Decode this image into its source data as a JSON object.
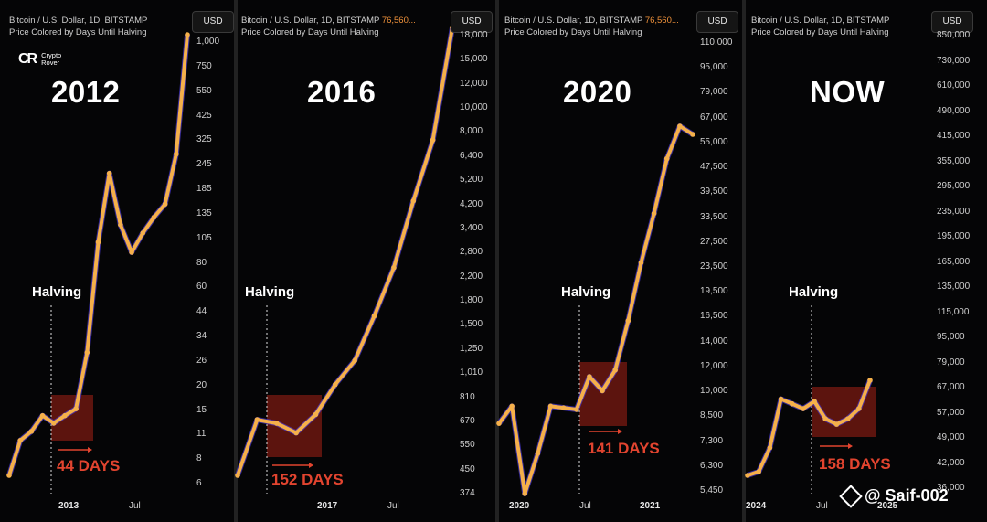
{
  "header": {
    "title": "Bitcoin / U.S. Dollar, 1D, BITSTAMP",
    "subtitle": "Price Colored by Days Until Halving",
    "price_text": "76,560...",
    "currency_button": "USD"
  },
  "logo": {
    "mark": "CR",
    "line1": "Crypto",
    "line2": "Rover"
  },
  "watermark": {
    "text": "@ Saif-002"
  },
  "colors": {
    "line_light": "#f5b04a",
    "line_dark": "#e06a25",
    "box": "#7a1a12",
    "days_text": "#e2442f",
    "outline": "#4a3ad8"
  },
  "panels": [
    {
      "year_label": "2012",
      "halving_label": "Halving",
      "days_label": "44 DAYS",
      "y_ticks": [
        "1,000",
        "750",
        "550",
        "425",
        "325",
        "245",
        "185",
        "135",
        "105",
        "80",
        "60",
        "44",
        "34",
        "26",
        "20",
        "15",
        "11",
        "8",
        "6"
      ],
      "x_ticks": [
        {
          "label": "2013",
          "bold": true
        },
        {
          "label": "Jul",
          "bold": false
        }
      ],
      "show_price": false,
      "show_logo": true
    },
    {
      "year_label": "2016",
      "halving_label": "Halving",
      "days_label": "152 DAYS",
      "y_ticks": [
        "18,000",
        "15,000",
        "12,000",
        "10,000",
        "8,000",
        "6,400",
        "5,200",
        "4,200",
        "3,400",
        "2,800",
        "2,200",
        "1,800",
        "1,500",
        "1,250",
        "1,010",
        "810",
        "670",
        "550",
        "450",
        "374"
      ],
      "x_ticks": [
        {
          "label": "2017",
          "bold": true
        },
        {
          "label": "Jul",
          "bold": false
        }
      ],
      "show_price": true,
      "show_logo": false
    },
    {
      "year_label": "2020",
      "halving_label": "Halving",
      "days_label": "141 DAYS",
      "y_ticks": [
        "110,000",
        "95,000",
        "79,000",
        "67,000",
        "55,000",
        "47,500",
        "39,500",
        "33,500",
        "27,500",
        "23,500",
        "19,500",
        "16,500",
        "14,000",
        "12,000",
        "10,000",
        "8,500",
        "7,300",
        "6,300",
        "5,450"
      ],
      "x_ticks": [
        {
          "label": "2020",
          "bold": true
        },
        {
          "label": "Jul",
          "bold": false
        },
        {
          "label": "2021",
          "bold": true
        }
      ],
      "show_price": true,
      "show_logo": false
    },
    {
      "year_label": "NOW",
      "halving_label": "Halving",
      "days_label": "158 DAYS",
      "y_ticks": [
        "850,000",
        "730,000",
        "610,000",
        "490,000",
        "415,000",
        "355,000",
        "295,000",
        "235,000",
        "195,000",
        "165,000",
        "135,000",
        "115,000",
        "95,000",
        "79,000",
        "67,000",
        "57,000",
        "49,000",
        "42,000",
        "36,000"
      ],
      "x_ticks": [
        {
          "label": "2024",
          "bold": true
        },
        {
          "label": "Jul",
          "bold": false
        },
        {
          "label": "2025",
          "bold": true
        }
      ],
      "show_price": false,
      "show_logo": false
    }
  ],
  "chart_data": [
    {
      "type": "line",
      "title": "2012",
      "x": [
        "2012-07",
        "2012-09",
        "2012-10",
        "2012-11",
        "2012-12",
        "2013-01",
        "2013-02",
        "2013-03",
        "2013-04",
        "2013-05",
        "2013-06",
        "2013-07",
        "2013-08",
        "2013-09",
        "2013-10",
        "2013-11",
        "2013-12"
      ],
      "values": [
        6,
        9,
        10,
        12,
        11,
        12,
        13,
        25,
        90,
        200,
        110,
        80,
        100,
        120,
        140,
        250,
        1000
      ],
      "halving": "2012-11"
    },
    {
      "type": "line",
      "title": "2016",
      "x": [
        "2016-04",
        "2016-06",
        "2016-07",
        "2016-09",
        "2016-11",
        "2017-01",
        "2017-03",
        "2017-05",
        "2017-07",
        "2017-09",
        "2017-11",
        "2017-12"
      ],
      "values": [
        420,
        670,
        650,
        600,
        700,
        900,
        1100,
        1600,
        2400,
        4200,
        7000,
        18000
      ],
      "halving": "2016-07"
    },
    {
      "type": "line",
      "title": "2020",
      "x": [
        "2020-01",
        "2020-02",
        "2020-03",
        "2020-04",
        "2020-05",
        "2020-06",
        "2020-07",
        "2020-08",
        "2020-09",
        "2020-10",
        "2020-11",
        "2020-12",
        "2021-01",
        "2021-02",
        "2021-03",
        "2021-04"
      ],
      "values": [
        8500,
        9500,
        5400,
        7000,
        9500,
        9400,
        9300,
        11500,
        10500,
        12000,
        16500,
        24000,
        33000,
        47000,
        58000,
        55000
      ],
      "halving": "2020-05"
    },
    {
      "type": "line",
      "title": "NOW",
      "x": [
        "2023-12",
        "2024-01",
        "2024-02",
        "2024-03",
        "2024-04",
        "2024-05",
        "2024-06",
        "2024-07",
        "2024-08",
        "2024-09",
        "2024-10",
        "2024-11"
      ],
      "values": [
        42000,
        43000,
        50000,
        68000,
        66000,
        64000,
        67000,
        60000,
        58000,
        60000,
        64000,
        76560
      ],
      "halving": "2024-04"
    }
  ]
}
